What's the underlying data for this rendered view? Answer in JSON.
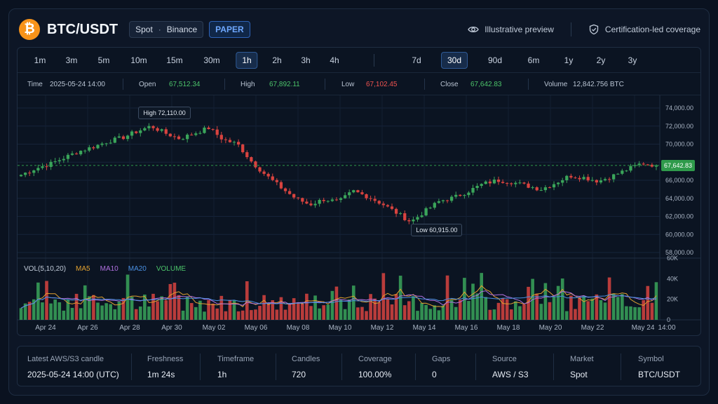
{
  "header": {
    "logo_glyph": "₿",
    "logo_icon": "bitcoin-icon",
    "symbol": "BTC/USDT",
    "market": "Spot",
    "market_sep": "·",
    "exchange": "Binance",
    "mode_badge": "PAPER",
    "preview_label": "Illustrative preview",
    "coverage_label": "Certification-led coverage"
  },
  "timeframes": {
    "intraday": [
      "1m",
      "3m",
      "5m",
      "10m",
      "15m",
      "30m",
      "1h",
      "2h",
      "3h",
      "4h"
    ],
    "ranges": [
      "7d",
      "30d",
      "90d",
      "6m",
      "1y",
      "2y",
      "3y"
    ],
    "active_timeframe": "1h",
    "active_range": "30d"
  },
  "ohlc": {
    "time_label": "Time",
    "time": "2025-05-24 14:00",
    "open_label": "Open",
    "open": "67,512.34",
    "high_label": "High",
    "high": "67,892.11",
    "low_label": "Low",
    "low": "67,102.45",
    "close_label": "Close",
    "close": "67,642.83",
    "volume_label": "Volume",
    "volume": "12,842.756 BTC"
  },
  "chart_data": {
    "type": "candlestick",
    "x_range": [
      "Apr 24",
      "May 24 14:00"
    ],
    "price_ylim": [
      58000,
      74000
    ],
    "price_ticks": [
      "74,000.00",
      "72,000.00",
      "70,000.00",
      "68,000.00",
      "66,000.00",
      "64,000.00",
      "62,000.00",
      "60,000.00",
      "58,000.00"
    ],
    "price_tick_values": [
      74000,
      72000,
      70000,
      68000,
      66000,
      64000,
      62000,
      60000,
      58000
    ],
    "x_ticks": [
      "Apr 24",
      "Apr 26",
      "Apr 28",
      "Apr 30",
      "May 02",
      "May 06",
      "May 08",
      "May 10",
      "May 12",
      "May 14",
      "May 16",
      "May 18",
      "May 20",
      "May 22",
      "May 24",
      "14:00"
    ],
    "close_path": [
      66600,
      67300,
      67800,
      68500,
      69200,
      69700,
      70300,
      70700,
      71400,
      72000,
      71200,
      70600,
      71200,
      71800,
      70500,
      70000,
      68000,
      66500,
      65200,
      64000,
      63300,
      63900,
      63600,
      64800,
      64200,
      63400,
      62400,
      61400,
      62600,
      63700,
      64100,
      64800,
      65600,
      66000,
      65800,
      65400,
      65000,
      65700,
      66500,
      66300,
      65900,
      66500,
      67200,
      67900,
      67643
    ],
    "high_marker": "72,110.00",
    "high_marker_label": "High",
    "low_marker": "60,915.00",
    "low_marker_label": "Low",
    "last_price": "67,642.83",
    "last_price_value": 67642.83,
    "volume_legend": {
      "title": "VOL(5,10,20)",
      "ma5": "MA5",
      "ma10": "MA10",
      "ma20": "MA20",
      "volume": "VOLUME"
    },
    "volume_ticks": [
      "60K",
      "40K",
      "20K",
      "0"
    ],
    "volume_tick_values": [
      60000,
      40000,
      20000,
      0
    ],
    "volume_ylim": [
      0,
      60000
    ],
    "colors": {
      "up": "#3aa55a",
      "down": "#d8433f",
      "ma5": "#e0a030",
      "ma10": "#b070e0",
      "ma20": "#4a90e2",
      "volume": "#4cc46a",
      "last": "#2f9a4b"
    }
  },
  "footer": {
    "latest_label": "Latest AWS/S3 candle",
    "latest": "2025-05-24 14:00 (UTC)",
    "freshness_label": "Freshness",
    "freshness": "1m 24s",
    "timeframe_label": "Timeframe",
    "timeframe": "1h",
    "candles_label": "Candles",
    "candles": "720",
    "coverage_label": "Coverage",
    "coverage": "100.00%",
    "gaps_label": "Gaps",
    "gaps": "0",
    "source_label": "Source",
    "source": "AWS / S3",
    "market_label": "Market",
    "market": "Spot",
    "symbol_label": "Symbol",
    "symbol": "BTC/USDT"
  }
}
